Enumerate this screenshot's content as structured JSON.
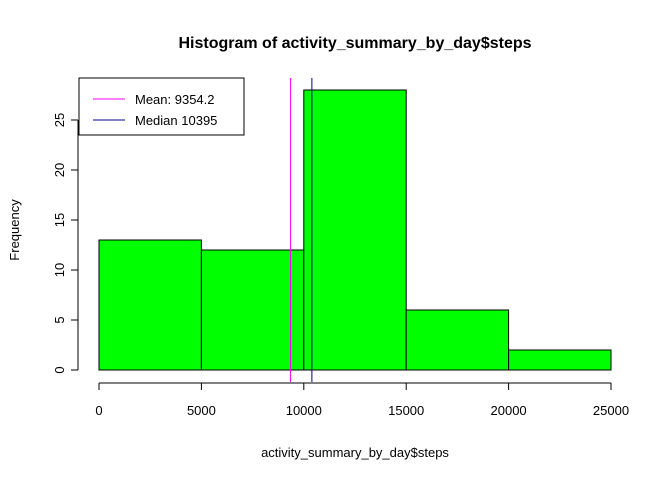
{
  "chart_data": {
    "type": "bar",
    "title": "Histogram of activity_summary_by_day$steps",
    "xlabel": "activity_summary_by_day$steps",
    "ylabel": "Frequency",
    "bins": [
      {
        "from": 0,
        "to": 5000,
        "count": 13
      },
      {
        "from": 5000,
        "to": 10000,
        "count": 12
      },
      {
        "from": 10000,
        "to": 15000,
        "count": 28
      },
      {
        "from": 15000,
        "to": 20000,
        "count": 6
      },
      {
        "from": 20000,
        "to": 25000,
        "count": 2
      }
    ],
    "xlim": [
      0,
      25000
    ],
    "ylim": [
      0,
      29
    ],
    "x_ticks": [
      0,
      5000,
      10000,
      15000,
      20000,
      25000
    ],
    "y_ticks": [
      0,
      5,
      10,
      15,
      20,
      25
    ],
    "bar_color": "#00ff00",
    "bar_border": "#000000",
    "grid": false,
    "vlines": [
      {
        "label": "Mean: 9354.2",
        "x": 9354.2,
        "color": "#ff00ff"
      },
      {
        "label": "Median 10395",
        "x": 10395,
        "color": "#00008b"
      }
    ],
    "legend_position": "top-left"
  }
}
